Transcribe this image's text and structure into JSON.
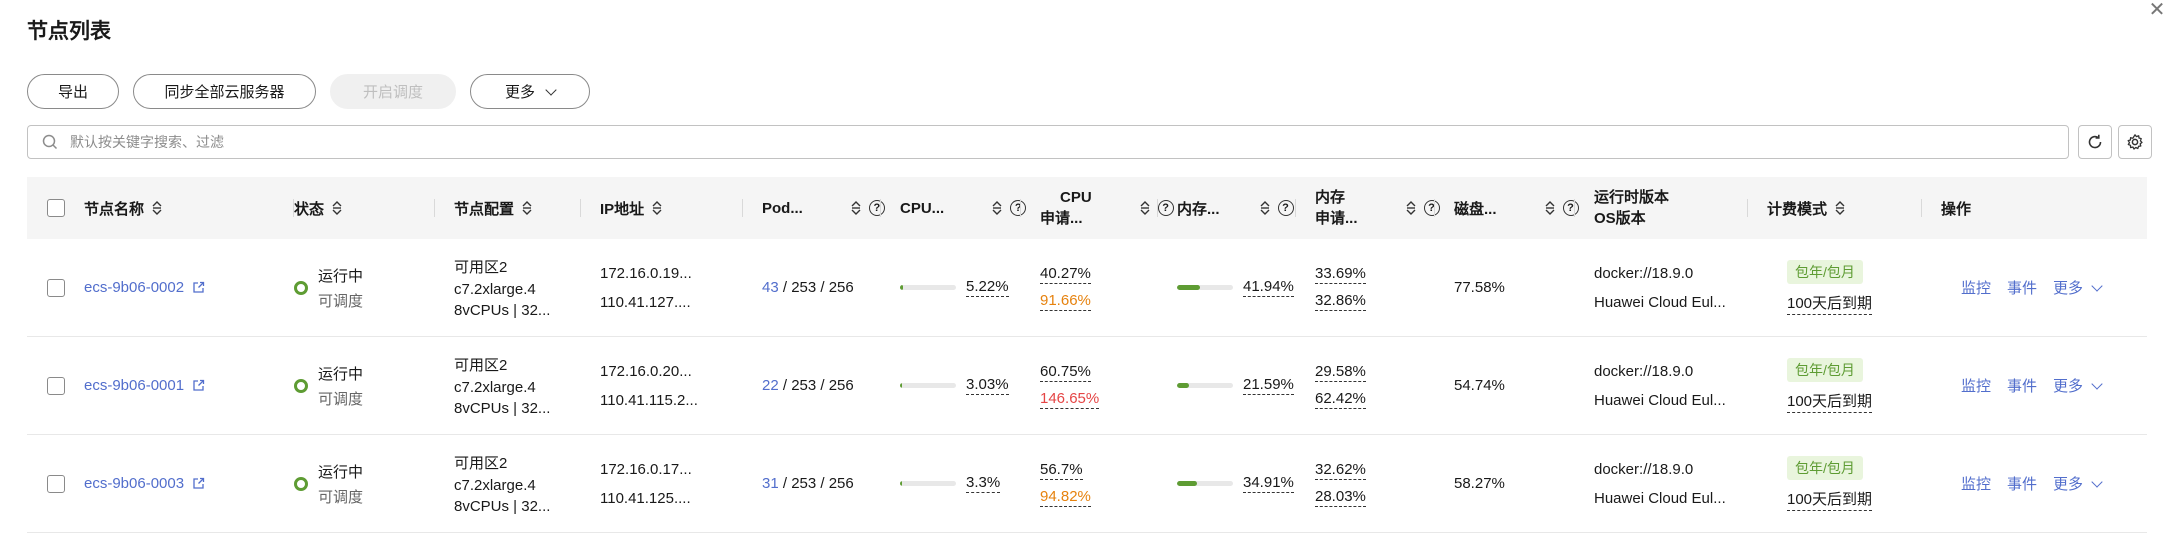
{
  "page_title": "节点列表",
  "toolbar": {
    "export_label": "导出",
    "sync_label": "同步全部云服务器",
    "schedule_label": "开启调度",
    "more_label": "更多"
  },
  "search": {
    "placeholder": "默认按关键字搜索、过滤"
  },
  "columns": {
    "name": "节点名称",
    "status": "状态",
    "config": "节点配置",
    "ip": "IP地址",
    "pod": "Pod...",
    "cpu": "CPU...",
    "cpu_req_1": "CPU",
    "cpu_req_2": "申请...",
    "mem": "内存...",
    "mem_req_1": "内存",
    "mem_req_2": "申请...",
    "disk": "磁盘...",
    "runtime_1": "运行时版本",
    "runtime_2": "OS版本",
    "billing": "计费模式",
    "ops": "操作"
  },
  "rows": [
    {
      "name": "ecs-9b06-0002",
      "status": "运行中",
      "sched": "可调度",
      "zone": "可用区2",
      "flavor": "c7.2xlarge.4",
      "spec": "8vCPUs | 32...",
      "ip_private": "172.16.0.19...",
      "ip_public": "110.41.127....",
      "pod_used": "43",
      "pod_rest": " / 253 / 256",
      "cpu": "5.22%",
      "cpu_fill": 0.0522,
      "cpu_req": "40.27%",
      "cpu_limit": "91.66%",
      "cpu_limit_color": "orange",
      "mem": "41.94%",
      "mem_fill": 0.4194,
      "mem_req": "33.69%",
      "mem_limit": "32.86%",
      "disk": "77.58%",
      "runtime": "docker://18.9.0",
      "os": "Huawei Cloud Eul...",
      "billing": "包年/包月",
      "expire": "100天后到期",
      "op_monitor": "监控",
      "op_events": "事件",
      "op_more": "更多"
    },
    {
      "name": "ecs-9b06-0001",
      "status": "运行中",
      "sched": "可调度",
      "zone": "可用区2",
      "flavor": "c7.2xlarge.4",
      "spec": "8vCPUs | 32...",
      "ip_private": "172.16.0.20...",
      "ip_public": "110.41.115.2...",
      "pod_used": "22",
      "pod_rest": " / 253 / 256",
      "cpu": "3.03%",
      "cpu_fill": 0.0303,
      "cpu_req": "60.75%",
      "cpu_limit": "146.65%",
      "cpu_limit_color": "red",
      "mem": "21.59%",
      "mem_fill": 0.2159,
      "mem_req": "29.58%",
      "mem_limit": "62.42%",
      "disk": "54.74%",
      "runtime": "docker://18.9.0",
      "os": "Huawei Cloud Eul...",
      "billing": "包年/包月",
      "expire": "100天后到期",
      "op_monitor": "监控",
      "op_events": "事件",
      "op_more": "更多"
    },
    {
      "name": "ecs-9b06-0003",
      "status": "运行中",
      "sched": "可调度",
      "zone": "可用区2",
      "flavor": "c7.2xlarge.4",
      "spec": "8vCPUs | 32...",
      "ip_private": "172.16.0.17...",
      "ip_public": "110.41.125....",
      "pod_used": "31",
      "pod_rest": " / 253 / 256",
      "cpu": "3.3%",
      "cpu_fill": 0.033,
      "cpu_req": "56.7%",
      "cpu_limit": "94.82%",
      "cpu_limit_color": "orange",
      "mem": "34.91%",
      "mem_fill": 0.3491,
      "mem_req": "32.62%",
      "mem_limit": "28.03%",
      "disk": "58.27%",
      "runtime": "docker://18.9.0",
      "os": "Huawei Cloud Eul...",
      "billing": "包年/包月",
      "expire": "100天后到期",
      "op_monitor": "监控",
      "op_events": "事件",
      "op_more": "更多"
    }
  ]
}
